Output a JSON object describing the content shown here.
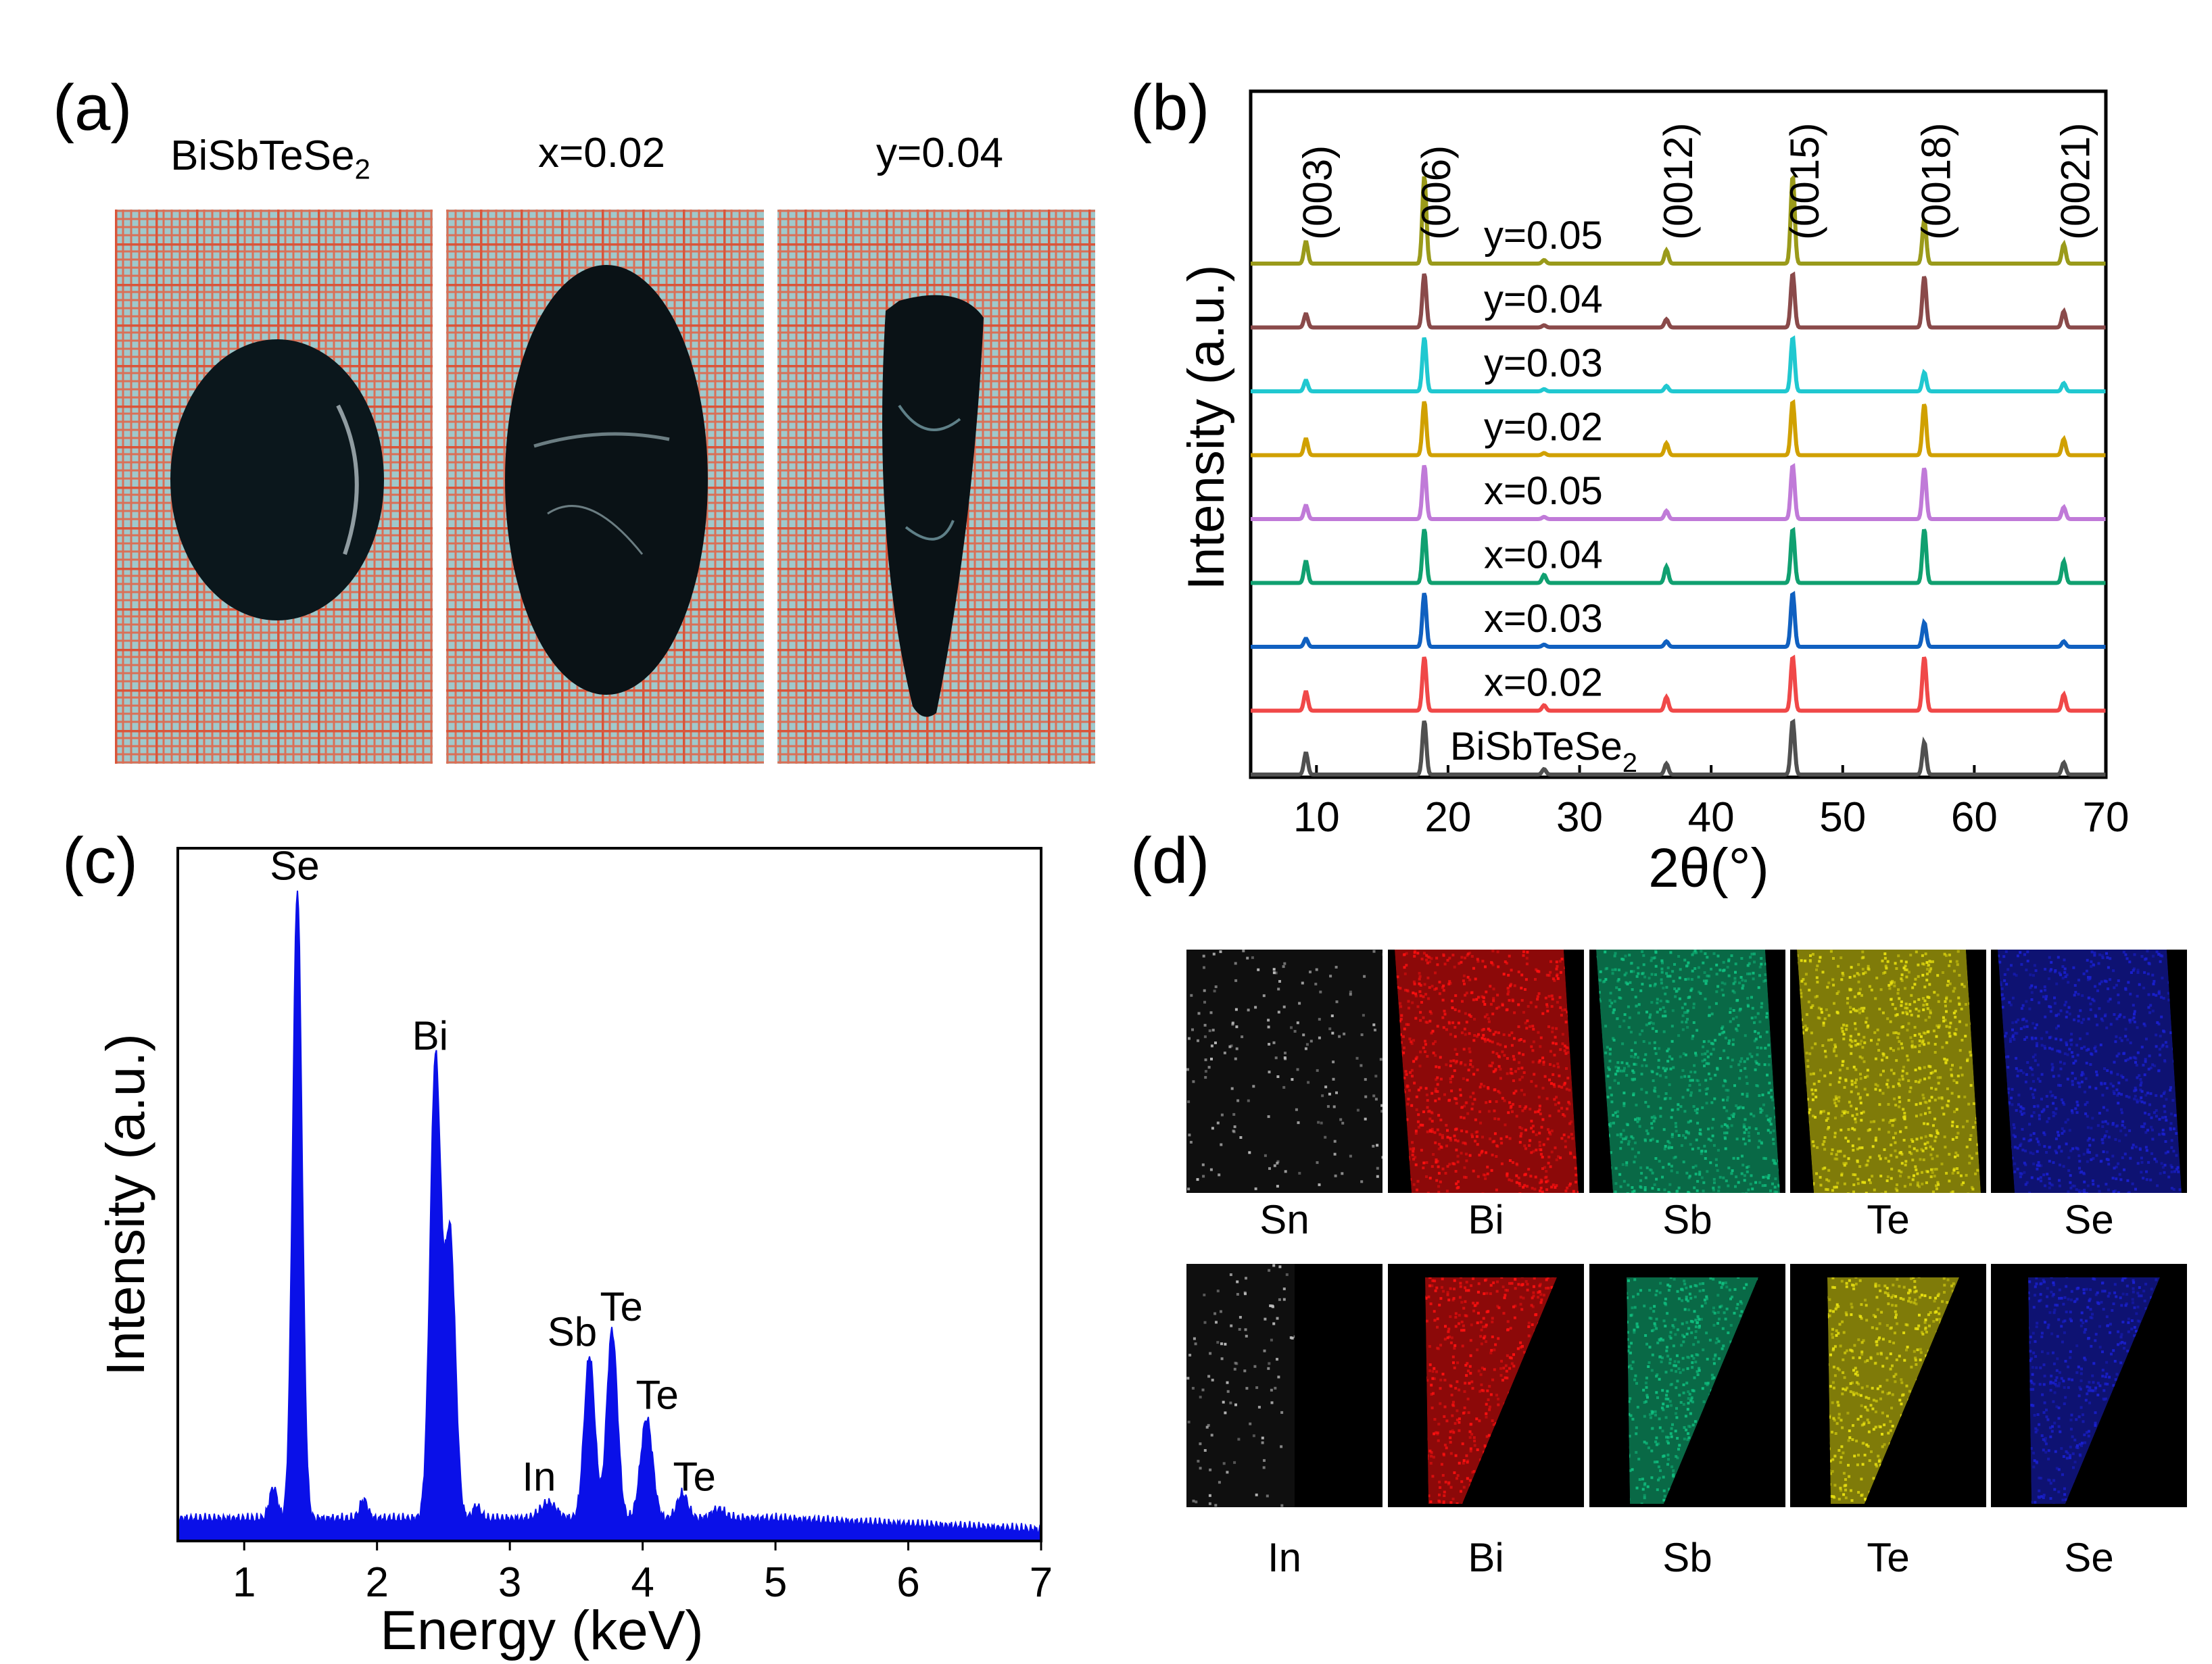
{
  "panels": {
    "a": {
      "label": "(a)",
      "samples": [
        {
          "title_main": "BiSbTeSe",
          "title_sub": "2"
        },
        {
          "title_main": "x=0.02",
          "title_sub": ""
        },
        {
          "title_main": "y=0.04",
          "title_sub": ""
        }
      ]
    },
    "b": {
      "label": "(b)"
    },
    "c": {
      "label": "(c)"
    },
    "d": {
      "label": "(d)",
      "row1": [
        "Sn",
        "Bi",
        "Sb",
        "Te",
        "Se"
      ],
      "row2": [
        "In",
        "Bi",
        "Sb",
        "Te",
        "Se"
      ]
    }
  },
  "colors": {
    "grid_orange": "#e0664a",
    "grid_bg": "#9fc9cc",
    "eds_blue": "#0a10e8",
    "map_sn": "#bbbbbb",
    "map_bi": "#ff1010",
    "map_sb": "#10c080",
    "map_te": "#e8e010",
    "map_se": "#1a20d0"
  },
  "chart_data": [
    {
      "type": "line",
      "title": "",
      "xlabel": "2θ(°)",
      "ylabel": "Intensity (a.u.)",
      "xlim": [
        5,
        70
      ],
      "xticks": [
        10,
        20,
        30,
        40,
        50,
        60,
        70
      ],
      "peak_labels": [
        {
          "text": "(003)",
          "x": 9.2
        },
        {
          "text": "(006)",
          "x": 18.2
        },
        {
          "text": "(0012)",
          "x": 36.6
        },
        {
          "text": "(0015)",
          "x": 46.2
        },
        {
          "text": "(0018)",
          "x": 56.2
        },
        {
          "text": "(0021)",
          "x": 66.8
        }
      ],
      "peaks": [
        {
          "x": 9.2,
          "w": 0.25
        },
        {
          "x": 18.2,
          "w": 0.25
        },
        {
          "x": 27.3,
          "w": 0.25
        },
        {
          "x": 36.6,
          "w": 0.25
        },
        {
          "x": 46.2,
          "w": 0.25
        },
        {
          "x": 56.2,
          "w": 0.25
        },
        {
          "x": 66.8,
          "w": 0.25
        }
      ],
      "series": [
        {
          "name": "y=0.05",
          "sub": "",
          "color": "#9a9a1a",
          "values": [
            0.25,
            1.0,
            0.04,
            0.15,
            1.0,
            0.5,
            0.22
          ]
        },
        {
          "name": "y=0.04",
          "sub": "",
          "color": "#8a4a4a",
          "values": [
            0.25,
            1.0,
            0.04,
            0.15,
            1.0,
            0.95,
            0.3
          ]
        },
        {
          "name": "y=0.03",
          "sub": "",
          "color": "#20c8d0",
          "values": [
            0.2,
            1.0,
            0.04,
            0.1,
            1.0,
            0.35,
            0.15
          ]
        },
        {
          "name": "y=0.02",
          "sub": "",
          "color": "#d0a000",
          "values": [
            0.3,
            1.0,
            0.04,
            0.22,
            1.0,
            0.95,
            0.3
          ]
        },
        {
          "name": "x=0.05",
          "sub": "",
          "color": "#c07ad8",
          "values": [
            0.25,
            1.0,
            0.04,
            0.15,
            1.0,
            0.95,
            0.22
          ]
        },
        {
          "name": "x=0.04",
          "sub": "",
          "color": "#10a070",
          "values": [
            0.4,
            1.0,
            0.15,
            0.3,
            1.0,
            1.0,
            0.4
          ]
        },
        {
          "name": "x=0.03",
          "sub": "",
          "color": "#1060c0",
          "values": [
            0.15,
            1.0,
            0.04,
            0.1,
            1.0,
            0.45,
            0.1
          ]
        },
        {
          "name": "x=0.02",
          "sub": "",
          "color": "#f04848",
          "values": [
            0.35,
            1.0,
            0.1,
            0.25,
            1.0,
            1.0,
            0.3
          ]
        },
        {
          "name": "BiSbTeSe",
          "sub": "2",
          "color": "#505050",
          "values": [
            0.4,
            1.0,
            0.1,
            0.2,
            1.0,
            0.6,
            0.22
          ]
        }
      ]
    },
    {
      "type": "area",
      "title": "",
      "xlabel": "Energy (keV)",
      "ylabel": "Intensity (a.u.)",
      "xlim": [
        0.5,
        7
      ],
      "ylim": [
        0,
        1.1
      ],
      "xticks": [
        1,
        2,
        3,
        4,
        5,
        6,
        7
      ],
      "baseline": 0.035,
      "peaks": [
        {
          "x": 1.22,
          "h": 0.05,
          "w": 0.03
        },
        {
          "x": 1.4,
          "h": 1.0,
          "w": 0.035
        },
        {
          "x": 1.9,
          "h": 0.03,
          "w": 0.03
        },
        {
          "x": 2.44,
          "h": 0.73,
          "w": 0.04
        },
        {
          "x": 2.55,
          "h": 0.45,
          "w": 0.04
        },
        {
          "x": 2.75,
          "h": 0.02,
          "w": 0.03
        },
        {
          "x": 3.29,
          "h": 0.025,
          "w": 0.06
        },
        {
          "x": 3.6,
          "h": 0.26,
          "w": 0.04
        },
        {
          "x": 3.77,
          "h": 0.3,
          "w": 0.04
        },
        {
          "x": 4.03,
          "h": 0.16,
          "w": 0.045
        },
        {
          "x": 4.3,
          "h": 0.04,
          "w": 0.04
        },
        {
          "x": 4.57,
          "h": 0.015,
          "w": 0.05
        }
      ],
      "annotations": [
        {
          "text": "Se",
          "x": 1.38,
          "y": 1.05
        },
        {
          "text": "Bi",
          "x": 2.4,
          "y": 0.78
        },
        {
          "text": "Sb",
          "x": 3.47,
          "y": 0.31
        },
        {
          "text": "Te",
          "x": 3.84,
          "y": 0.35
        },
        {
          "text": "In",
          "x": 3.22,
          "y": 0.08
        },
        {
          "text": "Te",
          "x": 4.11,
          "y": 0.21
        },
        {
          "text": "Te",
          "x": 4.39,
          "y": 0.08
        }
      ]
    }
  ]
}
